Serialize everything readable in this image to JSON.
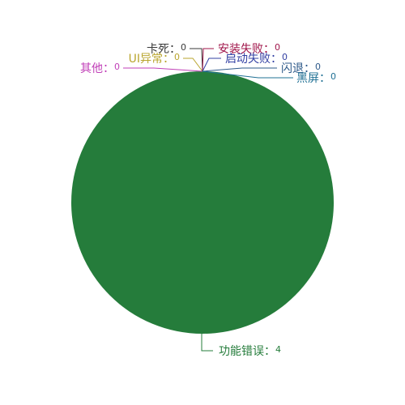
{
  "chart_data": {
    "type": "pie",
    "categories": [
      "功能错误",
      "其他",
      "UI异常",
      "卡死",
      "安装失败",
      "启动失败",
      "闪退",
      "黑屏"
    ],
    "values": [
      4,
      0,
      0,
      0,
      0,
      0,
      0,
      0
    ],
    "label_separator": "：",
    "colors": [
      "#257c3b",
      "#c03fb7",
      "#b9a52e",
      "#3a3a3a",
      "#a0154a",
      "#3340a3",
      "#2e5a8a",
      "#1f7094"
    ],
    "title": "",
    "legend": "none"
  }
}
